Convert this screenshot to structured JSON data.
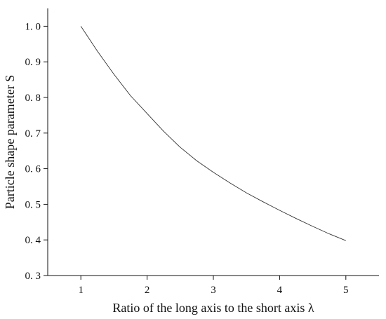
{
  "chart_data": {
    "type": "line",
    "title": "",
    "xlabel": "Ratio of the long axis to the short axis λ",
    "ylabel": "Particle shape parameter S",
    "xlim": [
      0.5,
      5.5
    ],
    "ylim": [
      0.3,
      1.05
    ],
    "grid": false,
    "x_ticks": [
      1,
      2,
      3,
      4,
      5
    ],
    "x_tick_labels": [
      "1",
      "2",
      "3",
      "4",
      "5"
    ],
    "y_ticks": [
      0.3,
      0.4,
      0.5,
      0.6,
      0.7,
      0.8,
      0.9,
      1.0
    ],
    "y_tick_labels": [
      "0. 3",
      "0. 4",
      "0. 5",
      "0. 6",
      "0. 7",
      "0. 8",
      "0. 9",
      "1. 0"
    ],
    "series": [
      {
        "x": [
          1.0,
          1.25,
          1.5,
          1.75,
          2.0,
          2.25,
          2.5,
          2.75,
          3.0,
          3.25,
          3.5,
          3.75,
          4.0,
          4.25,
          4.5,
          4.75,
          5.0
        ],
        "values": [
          1.0,
          0.93,
          0.865,
          0.805,
          0.755,
          0.705,
          0.66,
          0.622,
          0.59,
          0.56,
          0.532,
          0.507,
          0.483,
          0.46,
          0.438,
          0.417,
          0.398
        ]
      }
    ]
  }
}
